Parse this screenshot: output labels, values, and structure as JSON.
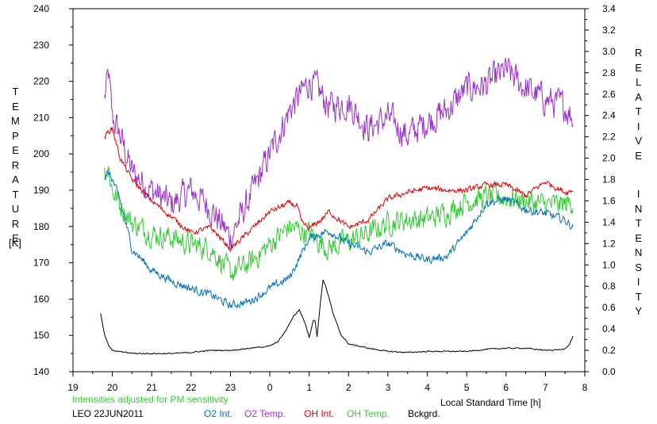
{
  "chart_data": {
    "type": "line",
    "xlabel": "Local Standard Time [h]",
    "ylabel_left": "TEMPERATURE",
    "ylabel_left_unit": "[K]",
    "ylabel_right": "RELATIVE INTENSITY",
    "note": "Intensities adjusted for PM sensitivity",
    "station": "LEO 22JUN2011",
    "xlim": [
      19,
      8
    ],
    "x_ticks": [
      "19",
      "20",
      "21",
      "22",
      "23",
      "0",
      "1",
      "2",
      "3",
      "4",
      "5",
      "6",
      "7",
      "8"
    ],
    "ylim_left": [
      140,
      240
    ],
    "y_ticks_left": [
      "140",
      "150",
      "160",
      "170",
      "180",
      "190",
      "200",
      "210",
      "220",
      "230",
      "240"
    ],
    "ylim_right": [
      0.0,
      3.4
    ],
    "y_ticks_right": [
      "0.0",
      "0.2",
      "0.4",
      "0.6",
      "0.8",
      "1.0",
      "1.2",
      "1.4",
      "1.6",
      "1.8",
      "2.0",
      "2.2",
      "2.4",
      "2.6",
      "2.8",
      "3.0",
      "3.2",
      "3.4"
    ],
    "grid": false,
    "legend_position": "bottom",
    "series": [
      {
        "name": "O2 Int.",
        "color": "#0070c0",
        "axis": "right",
        "noise": 0.06,
        "x": [
          19.8,
          19.9,
          20.0,
          20.2,
          20.5,
          21.0,
          21.5,
          22.0,
          22.5,
          23.0,
          23.5,
          24.0,
          24.5,
          25.0,
          25.5,
          26.0,
          26.5,
          27.0,
          27.5,
          28.0,
          28.5,
          29.0,
          29.5,
          30.0,
          30.5,
          31.0,
          31.5,
          31.7
        ],
        "values": [
          1.82,
          1.86,
          1.8,
          1.6,
          1.15,
          0.95,
          0.85,
          0.78,
          0.72,
          0.62,
          0.66,
          0.78,
          0.88,
          1.25,
          1.32,
          1.2,
          1.12,
          1.2,
          1.1,
          1.05,
          1.08,
          1.3,
          1.58,
          1.62,
          1.52,
          1.48,
          1.42,
          1.35
        ]
      },
      {
        "name": "O2 Temp.",
        "color": "#9933cc",
        "axis": "left",
        "noise": 6.5,
        "x": [
          19.8,
          19.9,
          20.0,
          20.2,
          20.5,
          21.0,
          21.5,
          22.0,
          22.5,
          23.0,
          23.5,
          24.0,
          24.5,
          25.0,
          25.2,
          25.5,
          26.0,
          26.5,
          27.0,
          27.5,
          28.0,
          28.5,
          29.0,
          29.5,
          30.0,
          30.5,
          31.0,
          31.5,
          31.7
        ],
        "values": [
          215,
          222,
          210,
          205,
          195,
          190,
          186,
          190,
          185,
          177,
          188,
          200,
          212,
          220,
          218,
          213,
          214,
          207,
          210,
          205,
          209,
          212,
          218,
          219,
          223,
          218,
          215,
          213,
          210
        ]
      },
      {
        "name": "OH Int.",
        "color": "#e00000",
        "axis": "right",
        "noise": 0.04,
        "x": [
          19.8,
          19.9,
          20.0,
          20.2,
          20.5,
          21.0,
          21.5,
          22.0,
          22.5,
          23.0,
          23.5,
          24.0,
          24.5,
          24.7,
          24.8,
          25.0,
          25.3,
          25.5,
          26.0,
          26.5,
          27.0,
          27.5,
          28.0,
          28.5,
          29.0,
          29.5,
          30.0,
          30.5,
          31.0,
          31.5,
          31.7
        ],
        "values": [
          2.2,
          2.25,
          2.28,
          2.0,
          1.8,
          1.6,
          1.45,
          1.3,
          1.35,
          1.15,
          1.32,
          1.5,
          1.58,
          1.55,
          1.4,
          1.34,
          1.42,
          1.5,
          1.35,
          1.42,
          1.62,
          1.68,
          1.72,
          1.7,
          1.7,
          1.75,
          1.75,
          1.65,
          1.78,
          1.68,
          1.7
        ]
      },
      {
        "name": "OH Temp.",
        "color": "#33cc33",
        "axis": "left",
        "noise": 5.0,
        "x": [
          19.8,
          19.9,
          20.0,
          20.2,
          20.5,
          21.0,
          21.5,
          22.0,
          22.5,
          23.0,
          23.5,
          24.0,
          24.5,
          25.0,
          25.5,
          26.0,
          26.5,
          27.0,
          27.5,
          28.0,
          28.5,
          29.0,
          29.5,
          30.0,
          30.5,
          31.0,
          31.5,
          31.7
        ],
        "values": [
          195,
          196,
          190,
          186,
          181,
          178,
          177,
          175,
          174,
          167,
          170,
          175,
          180,
          178,
          174,
          176,
          178,
          181,
          182,
          182,
          184,
          187,
          188,
          188,
          187,
          186,
          186,
          187
        ]
      },
      {
        "name": "Bckgrd.",
        "color": "#000000",
        "axis": "right",
        "noise": 0.008,
        "x": [
          19.7,
          19.8,
          19.9,
          20.0,
          20.3,
          20.6,
          21.0,
          21.5,
          22.0,
          22.5,
          23.0,
          23.5,
          24.0,
          24.2,
          24.4,
          24.6,
          24.75,
          24.9,
          25.0,
          25.1,
          25.15,
          25.2,
          25.3,
          25.35,
          25.4,
          25.5,
          25.6,
          25.8,
          26.0,
          26.5,
          27.0,
          27.5,
          28.0,
          28.5,
          29.0,
          29.5,
          30.0,
          30.5,
          31.0,
          31.5,
          31.6,
          31.7
        ],
        "values": [
          0.55,
          0.35,
          0.25,
          0.2,
          0.18,
          0.17,
          0.17,
          0.17,
          0.18,
          0.2,
          0.2,
          0.22,
          0.24,
          0.28,
          0.38,
          0.52,
          0.58,
          0.45,
          0.32,
          0.48,
          0.48,
          0.33,
          0.7,
          0.86,
          0.82,
          0.7,
          0.55,
          0.35,
          0.26,
          0.22,
          0.19,
          0.18,
          0.19,
          0.19,
          0.19,
          0.21,
          0.22,
          0.22,
          0.2,
          0.21,
          0.25,
          0.33
        ]
      }
    ]
  }
}
